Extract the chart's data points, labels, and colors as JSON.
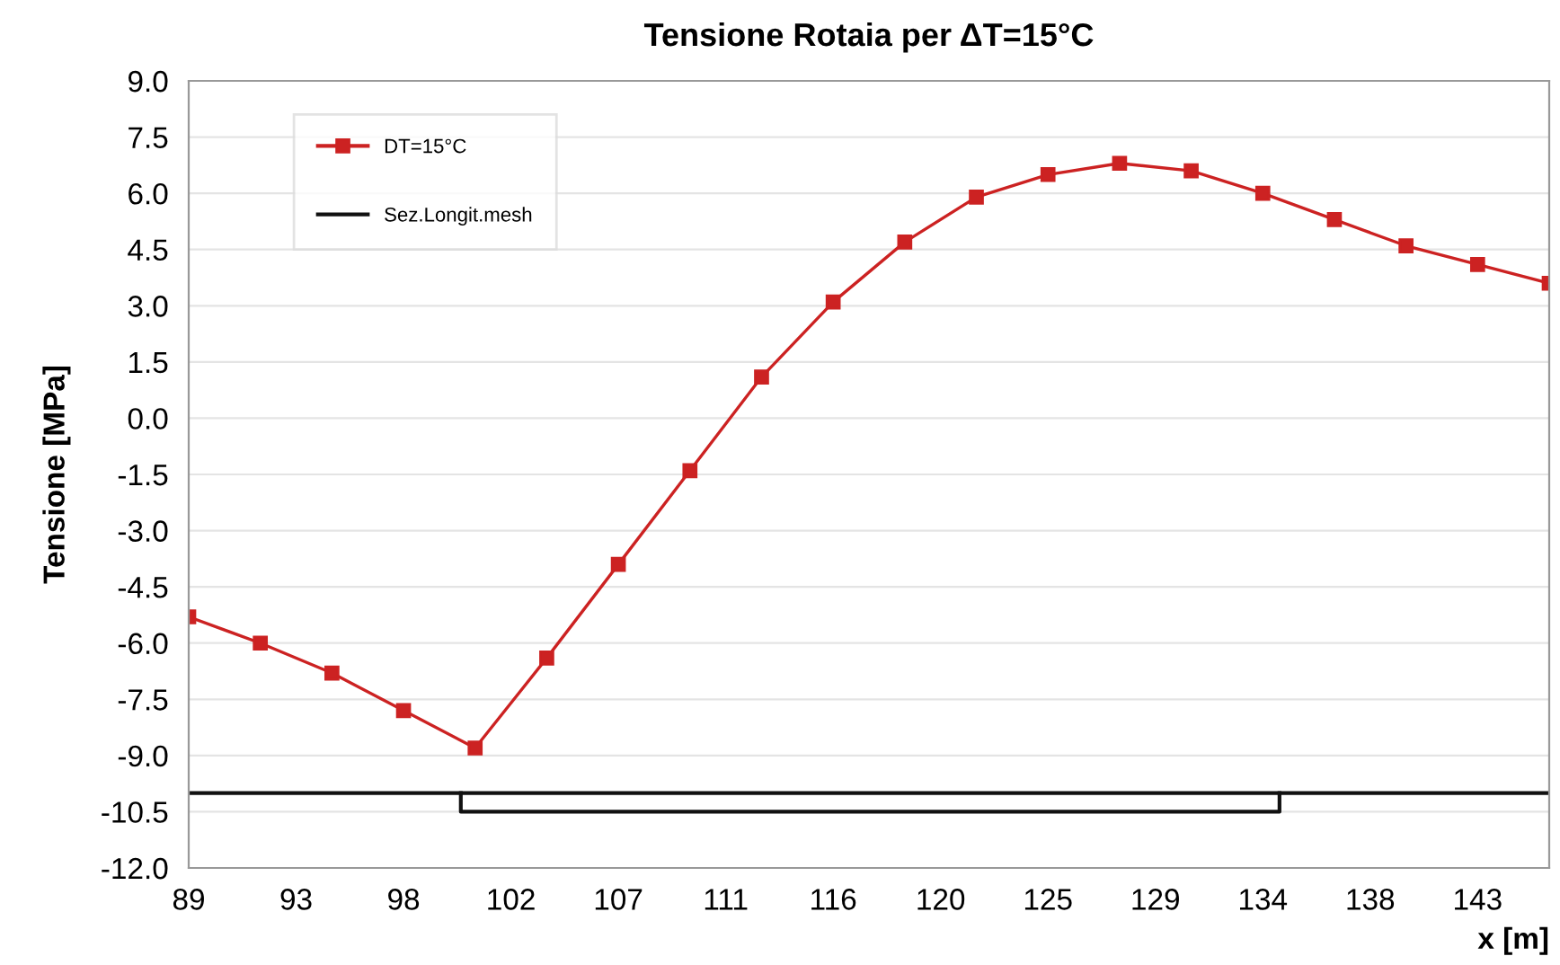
{
  "chart_data": {
    "type": "line",
    "title": "Tensione Rotaia per ΔT=15°C",
    "xlabel": "x [m]",
    "ylabel": "Tensione [MPa]",
    "series": [
      {
        "name": "DT=15°C",
        "color": "#cc2222",
        "marker": "square",
        "x": [
          89,
          92,
          95,
          98,
          101,
          104,
          107,
          110,
          113,
          116,
          119,
          122,
          125,
          128,
          131,
          134,
          137,
          140,
          143,
          146
        ],
        "values": [
          -5.3,
          -6.0,
          -6.8,
          -7.8,
          -8.8,
          -6.4,
          -3.9,
          -1.4,
          1.1,
          3.1,
          4.7,
          5.9,
          6.5,
          6.8,
          6.6,
          6.0,
          5.3,
          4.6,
          4.1,
          3.6
        ]
      },
      {
        "name": "Sez.Longit.mesh",
        "color": "#111111",
        "marker": "none",
        "x": [
          89,
          146
        ],
        "values": [
          -10.0,
          -10.0
        ]
      },
      {
        "color": "#111111",
        "marker": "none",
        "x": [
          100.4,
          100.4,
          134.7,
          134.7
        ],
        "values": [
          -10.0,
          -10.5,
          -10.5,
          -10.0
        ]
      }
    ],
    "xlim": [
      89,
      146
    ],
    "ylim": [
      -12,
      9
    ],
    "xticks": [
      89,
      {
        "value": 93.5,
        "label": "93"
      },
      98,
      {
        "value": 102.5,
        "label": "102"
      },
      107,
      {
        "value": 111.5,
        "label": "111"
      },
      116,
      {
        "value": 120.5,
        "label": "120"
      },
      125,
      {
        "value": 129.5,
        "label": "129"
      },
      134,
      {
        "value": 138.5,
        "label": "138"
      },
      143
    ],
    "yticks": [
      {
        "value": 9,
        "label": "9.0"
      },
      7.5,
      {
        "value": 6,
        "label": "6.0"
      },
      4.5,
      {
        "value": 3,
        "label": "3.0"
      },
      1.5,
      {
        "value": 0,
        "label": "0.0"
      },
      -1.5,
      {
        "value": -3,
        "label": "-3.0"
      },
      -4.5,
      {
        "value": -6,
        "label": "-6.0"
      },
      -7.5,
      {
        "value": -9,
        "label": "-9.0"
      },
      -10.5,
      {
        "value": -12,
        "label": "-12.0"
      }
    ],
    "grid": "y",
    "legend": "top left",
    "line_style": "solid"
  }
}
